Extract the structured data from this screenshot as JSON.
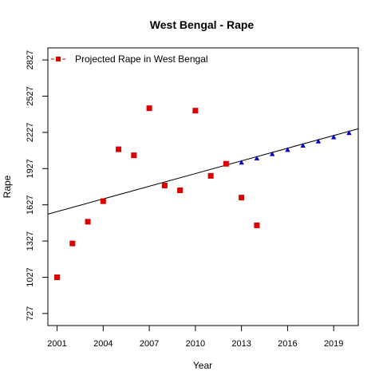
{
  "chart_data": {
    "type": "scatter",
    "title": "West Bengal  -  Rape",
    "xlabel": "Year",
    "ylabel": "Rape",
    "xlim": [
      2000.4,
      2020.6
    ],
    "ylim": [
      627,
      2927
    ],
    "x_ticks": [
      2001,
      2004,
      2007,
      2010,
      2013,
      2016,
      2019
    ],
    "y_ticks": [
      727,
      1027,
      1327,
      1627,
      1927,
      2227,
      2527,
      2827
    ],
    "grid": false,
    "legend_position": "top-left",
    "legend": [
      {
        "label": "Projected  Rape  in  West Bengal",
        "color": "#dd0000",
        "marker": "square"
      }
    ],
    "series": [
      {
        "name": "Projected  Rape  in  West Bengal",
        "color": "#dd0000",
        "marker": "square",
        "points": [
          {
            "x": 2001,
            "y": 1027
          },
          {
            "x": 2002,
            "y": 1307
          },
          {
            "x": 2003,
            "y": 1487
          },
          {
            "x": 2004,
            "y": 1657
          },
          {
            "x": 2005,
            "y": 2087
          },
          {
            "x": 2006,
            "y": 2037
          },
          {
            "x": 2007,
            "y": 2427
          },
          {
            "x": 2008,
            "y": 1787
          },
          {
            "x": 2009,
            "y": 1747
          },
          {
            "x": 2010,
            "y": 2407
          },
          {
            "x": 2011,
            "y": 1867
          },
          {
            "x": 2012,
            "y": 1967
          },
          {
            "x": 2013,
            "y": 1687
          },
          {
            "x": 2014,
            "y": 1457
          }
        ]
      },
      {
        "color": "#0000cc",
        "marker": "triangle",
        "points": [
          {
            "x": 2013,
            "y": 1977
          },
          {
            "x": 2014,
            "y": 2012
          },
          {
            "x": 2015,
            "y": 2047
          },
          {
            "x": 2016,
            "y": 2082
          },
          {
            "x": 2017,
            "y": 2117
          },
          {
            "x": 2018,
            "y": 2152
          },
          {
            "x": 2019,
            "y": 2187
          },
          {
            "x": 2020,
            "y": 2222
          }
        ]
      }
    ],
    "trend_line": {
      "color": "#000000",
      "x0": 2000.4,
      "y0": 1550,
      "x1": 2020.6,
      "y1": 2257
    }
  }
}
